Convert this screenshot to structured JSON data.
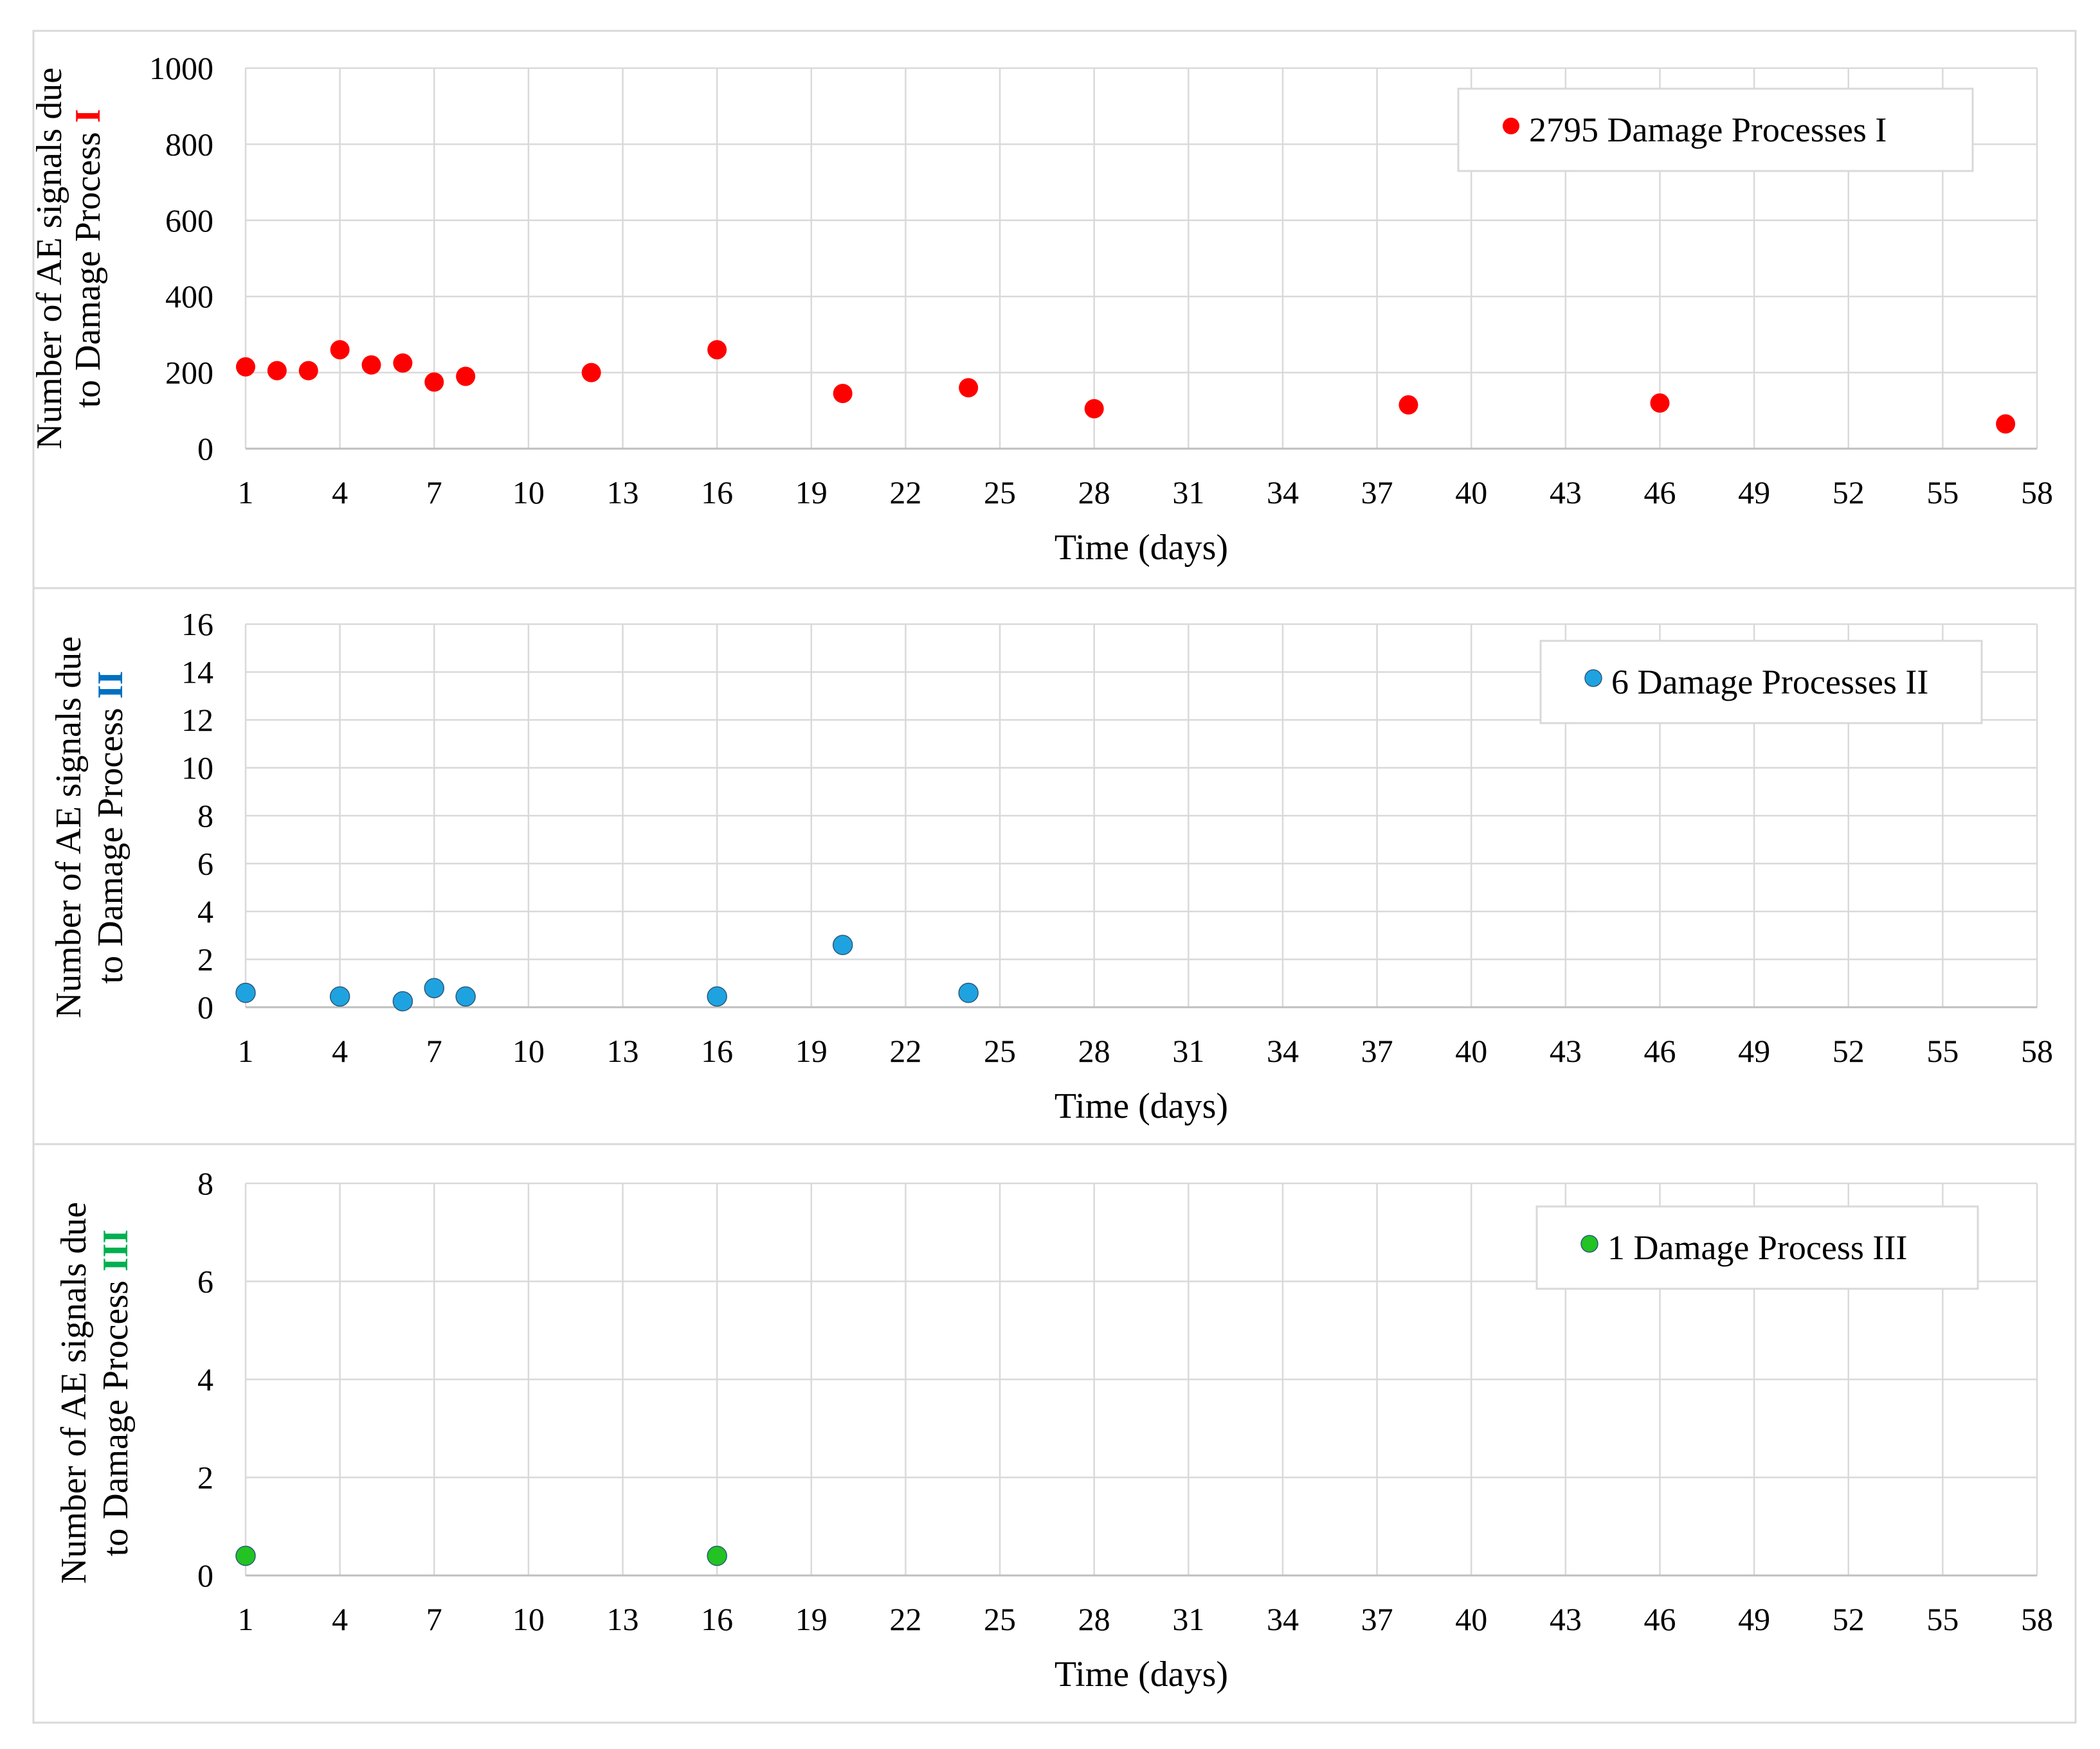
{
  "chart_data": [
    {
      "type": "scatter",
      "xlabel": "Time (days)",
      "ylabel_line1": "Number of AE signals due",
      "ylabel_line2": "to Damage Process",
      "ylabel_roman": "I",
      "ylim": [
        0,
        1000
      ],
      "yticks": [
        0,
        200,
        400,
        600,
        800,
        1000
      ],
      "xlim": [
        1,
        58
      ],
      "xticks": [
        1,
        4,
        7,
        10,
        13,
        16,
        19,
        22,
        25,
        28,
        31,
        34,
        37,
        40,
        43,
        46,
        49,
        52,
        55,
        58
      ],
      "grid": true,
      "legend": {
        "label": "2795 Damage Processes I",
        "position": "top-right"
      },
      "color": "#ff0000",
      "roman_color": "#ff0000",
      "series": [
        {
          "name": "2795 Damage Processes I",
          "x": [
            1,
            2,
            3,
            4,
            5,
            6,
            7,
            8,
            12,
            16,
            20,
            24,
            28,
            38,
            46,
            57
          ],
          "y": [
            215,
            205,
            205,
            260,
            220,
            225,
            175,
            190,
            200,
            260,
            145,
            160,
            105,
            115,
            120,
            65
          ]
        }
      ]
    },
    {
      "type": "scatter",
      "xlabel": "Time (days)",
      "ylabel_line1": "Number of AE signals due",
      "ylabel_line2": "to Damage Process",
      "ylabel_roman": "II",
      "ylim": [
        0,
        16
      ],
      "yticks": [
        0,
        2,
        4,
        6,
        8,
        10,
        12,
        14,
        16
      ],
      "xlim": [
        1,
        58
      ],
      "xticks": [
        1,
        4,
        7,
        10,
        13,
        16,
        19,
        22,
        25,
        28,
        31,
        34,
        37,
        40,
        43,
        46,
        49,
        52,
        55,
        58
      ],
      "grid": true,
      "legend": {
        "label": "6 Damage Processes II",
        "position": "top-right"
      },
      "color": "#1fa3e0",
      "roman_color": "#0070c0",
      "series": [
        {
          "name": "6 Damage Processes II",
          "x": [
            1,
            4,
            6,
            7,
            8,
            16,
            20,
            24
          ],
          "y": [
            0.6,
            0.45,
            0.25,
            0.8,
            0.45,
            0.45,
            2.6,
            0.6
          ]
        }
      ]
    },
    {
      "type": "scatter",
      "xlabel": "Time (days)",
      "ylabel_line1": "Number of AE signals due",
      "ylabel_line2": "to Damage Process",
      "ylabel_roman": "III",
      "ylim": [
        0,
        8
      ],
      "yticks": [
        0,
        2,
        4,
        6,
        8
      ],
      "xlim": [
        1,
        58
      ],
      "xticks": [
        1,
        4,
        7,
        10,
        13,
        16,
        19,
        22,
        25,
        28,
        31,
        34,
        37,
        40,
        43,
        46,
        49,
        52,
        55,
        58
      ],
      "grid": true,
      "legend": {
        "label": "1 Damage Process III",
        "position": "top-right"
      },
      "color": "#22c322",
      "roman_color": "#00b050",
      "series": [
        {
          "name": "1 Damage Process III",
          "x": [
            1,
            16
          ],
          "y": [
            0.4,
            0.4
          ]
        }
      ]
    }
  ]
}
